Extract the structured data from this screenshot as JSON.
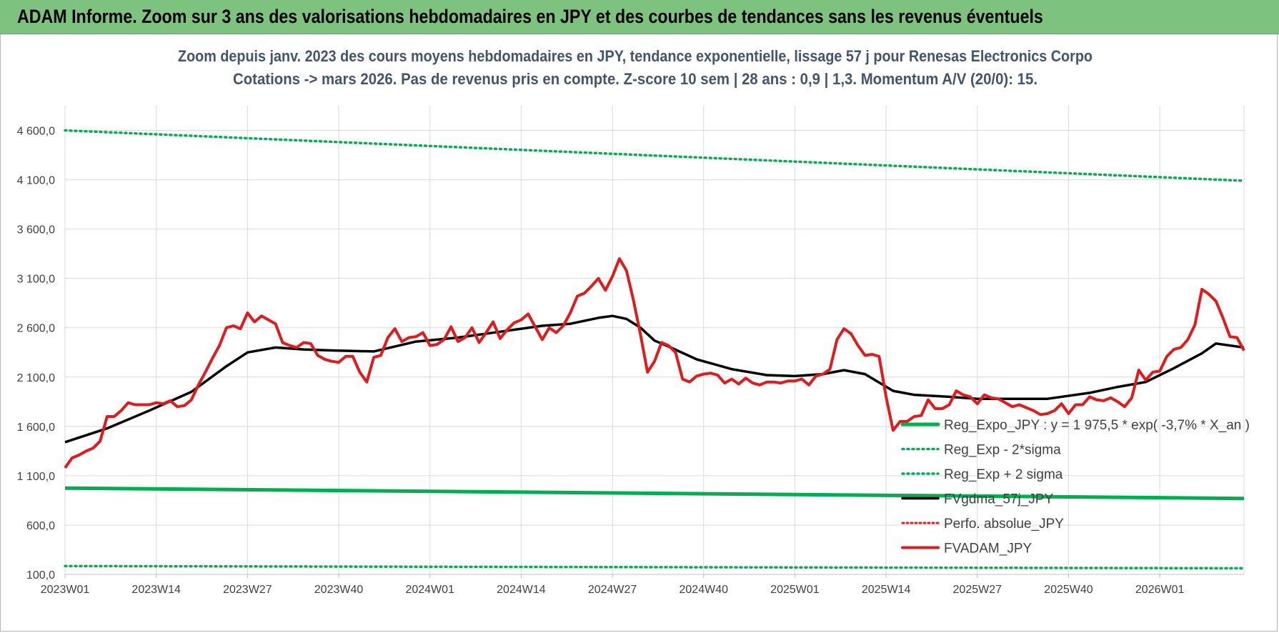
{
  "banner": {
    "title": "ADAM Informe. Zoom sur 3 ans des valorisations hebdomadaires en JPY et des courbes de tendances sans les revenus éventuels"
  },
  "colors": {
    "banner_bg": "#7ec27f",
    "trend_green": "#00b050",
    "smooth_black": "#000000",
    "price_red": "#e31a1c",
    "grid": "#d9d9d9",
    "subtitle": "#44546a"
  },
  "chart_data": {
    "type": "line",
    "title": "Zoom depuis janv. 2023 des cours moyens hebdomadaires en JPY, tendance exponentielle, lissage 57 j pour Renesas Electronics Corpo",
    "subtitle": "Cotations -> mars 2026. Pas de revenus pris en compte. Z-score 10 sem | 28 ans : 0,9 | 1,3. Momentum A/V (20/0): 15.",
    "xlabel": "",
    "ylabel": "",
    "ylim": [
      100,
      4850
    ],
    "y_ticks": [
      100,
      600,
      1100,
      1600,
      2100,
      2600,
      3100,
      3600,
      4100,
      4600
    ],
    "y_tick_labels": [
      "100,0",
      "600,0",
      "1 100,0",
      "1 600,0",
      "2 100,0",
      "2 600,0",
      "3 100,0",
      "3 600,0",
      "4 100,0",
      "4 600,0"
    ],
    "x_tick_labels": [
      "2023W01",
      "2023W14",
      "2023W27",
      "2023W40",
      "2024W01",
      "2024W14",
      "2024W27",
      "2024W40",
      "2025W01",
      "2025W14",
      "2025W27",
      "2025W40",
      "2026W01"
    ],
    "x_tick_weeks": [
      0,
      13,
      26,
      39,
      52,
      65,
      78,
      91,
      104,
      117,
      130,
      143,
      156
    ],
    "x_range_weeks": [
      0,
      168
    ],
    "legend": [
      "Reg_Expo_JPY : y = 1 975,5 * exp( -3,7% *  X_an )",
      "Reg_Exp - 2*sigma",
      "Reg_Exp + 2 sigma",
      "FVgdma_57j_JPY",
      "Perfo. absolue_JPY",
      "FVADAM_JPY"
    ],
    "series": [
      {
        "name": "Reg_Expo_JPY : y = 1 975,5 * exp( -3,7% *  X_an )",
        "style": "solid-thick-green",
        "x": [
          0,
          168
        ],
        "values": [
          975,
          870
        ]
      },
      {
        "name": "Reg_Exp - 2*sigma",
        "style": "dotted-green",
        "x": [
          0,
          168
        ],
        "values": [
          185,
          162
        ]
      },
      {
        "name": "Reg_Exp + 2 sigma",
        "style": "dotted-green",
        "x": [
          0,
          168
        ],
        "values": [
          4600,
          4090
        ]
      },
      {
        "name": "FVgdma_57j_JPY",
        "style": "solid-black",
        "x": [
          0,
          6,
          12,
          18,
          23,
          26,
          30,
          34,
          38,
          44,
          50,
          56,
          62,
          68,
          72,
          76,
          78,
          80,
          82,
          84,
          86,
          90,
          95,
          100,
          104,
          108,
          111,
          114,
          118,
          121,
          126,
          130,
          136,
          140,
          146,
          150,
          154,
          158,
          162,
          164,
          168
        ],
        "values": [
          1440,
          1580,
          1760,
          1950,
          2210,
          2350,
          2400,
          2380,
          2370,
          2360,
          2460,
          2500,
          2560,
          2620,
          2640,
          2700,
          2720,
          2690,
          2600,
          2470,
          2410,
          2280,
          2180,
          2120,
          2110,
          2130,
          2170,
          2130,
          1960,
          1920,
          1900,
          1880,
          1880,
          1880,
          1940,
          2000,
          2050,
          2190,
          2340,
          2440,
          2400
        ]
      },
      {
        "name": "FVADAM_JPY",
        "style": "solid-thick-red",
        "x": [
          0,
          1,
          2,
          3,
          4,
          5,
          6,
          7,
          8,
          9,
          10,
          11,
          12,
          13,
          14,
          15,
          16,
          17,
          18,
          19,
          20,
          21,
          22,
          23,
          24,
          25,
          26,
          27,
          28,
          29,
          30,
          31,
          32,
          33,
          34,
          35,
          36,
          37,
          38,
          39,
          40,
          41,
          42,
          43,
          44,
          45,
          46,
          47,
          48,
          49,
          50,
          51,
          52,
          53,
          54,
          55,
          56,
          57,
          58,
          59,
          60,
          61,
          62,
          63,
          64,
          65,
          66,
          67,
          68,
          69,
          70,
          71,
          72,
          73,
          74,
          75,
          76,
          77,
          78,
          79,
          80,
          81,
          82,
          83,
          84,
          85,
          86,
          87,
          88,
          89,
          90,
          91,
          92,
          93,
          94,
          95,
          96,
          97,
          98,
          99,
          100,
          101,
          102,
          103,
          104,
          105,
          106,
          107,
          108,
          109,
          110,
          111,
          112,
          113,
          114,
          115,
          116,
          117,
          118,
          119,
          120,
          121,
          122,
          123,
          124,
          125,
          126,
          127,
          128,
          129,
          130,
          131,
          132,
          133,
          134,
          135,
          136,
          137,
          138,
          139,
          140,
          141,
          142,
          143,
          144,
          145,
          146,
          147,
          148,
          149,
          150,
          151,
          152,
          153,
          154,
          155,
          156,
          157,
          158,
          159,
          160,
          161,
          162,
          163,
          164,
          165,
          166,
          167,
          168
        ],
        "values": [
          1180,
          1280,
          1310,
          1350,
          1380,
          1450,
          1700,
          1700,
          1760,
          1840,
          1820,
          1820,
          1820,
          1840,
          1830,
          1860,
          1800,
          1810,
          1870,
          2020,
          2150,
          2290,
          2420,
          2600,
          2620,
          2590,
          2750,
          2660,
          2720,
          2680,
          2640,
          2450,
          2420,
          2400,
          2450,
          2440,
          2320,
          2280,
          2260,
          2250,
          2310,
          2310,
          2150,
          2050,
          2300,
          2320,
          2500,
          2590,
          2460,
          2500,
          2510,
          2550,
          2420,
          2430,
          2480,
          2610,
          2460,
          2500,
          2600,
          2450,
          2550,
          2660,
          2490,
          2580,
          2650,
          2680,
          2740,
          2610,
          2480,
          2600,
          2550,
          2620,
          2750,
          2920,
          2950,
          3020,
          3100,
          2980,
          3120,
          3300,
          3180,
          2880,
          2530,
          2150,
          2260,
          2450,
          2420,
          2350,
          2080,
          2050,
          2110,
          2130,
          2140,
          2120,
          2040,
          2080,
          2030,
          2090,
          2040,
          2020,
          2050,
          2050,
          2040,
          2060,
          2060,
          2080,
          2020,
          2110,
          2130,
          2180,
          2480,
          2590,
          2540,
          2420,
          2320,
          2330,
          2310,
          1900,
          1560,
          1650,
          1650,
          1700,
          1710,
          1870,
          1780,
          1780,
          1820,
          1960,
          1920,
          1900,
          1830,
          1920,
          1890,
          1880,
          1840,
          1800,
          1820,
          1790,
          1760,
          1720,
          1730,
          1760,
          1830,
          1730,
          1820,
          1820,
          1900,
          1870,
          1860,
          1890,
          1850,
          1800,
          1890,
          2170,
          2070,
          2150,
          2160,
          2310,
          2380,
          2400,
          2480,
          2630,
          2990,
          2940,
          2870,
          2700,
          2510,
          2500,
          2370
        ]
      }
    ]
  }
}
